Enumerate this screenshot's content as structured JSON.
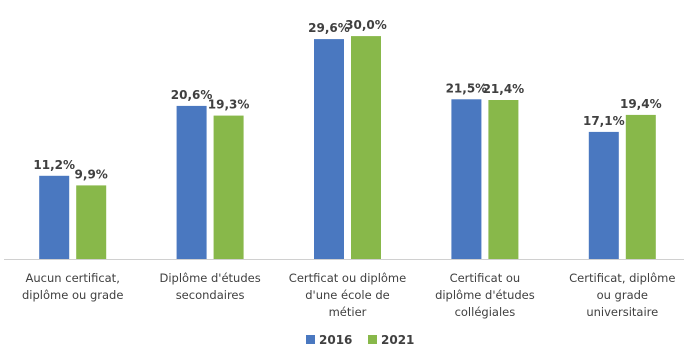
{
  "chart_data": {
    "type": "bar",
    "title": "",
    "xlabel": "",
    "ylabel": "",
    "ylim": [
      0,
      30
    ],
    "grid": false,
    "legend_position": "bottom",
    "categories": [
      [
        "Aucun certificat,",
        "diplôme ou grade"
      ],
      [
        "Diplôme d'études",
        "secondaires"
      ],
      [
        "Certficat ou diplôme",
        "d'une école de",
        "métier"
      ],
      [
        "Certificat ou",
        "diplôme d'études",
        "collégiales"
      ],
      [
        "Certificat, diplôme",
        "ou grade",
        "universitaire"
      ]
    ],
    "series": [
      {
        "name": "2016",
        "color": "#4a78c0",
        "values": [
          11.2,
          20.6,
          29.6,
          21.5,
          17.1
        ],
        "labels": [
          "11,2%",
          "20,6%",
          "29,6%",
          "21,5%",
          "17,1%"
        ]
      },
      {
        "name": "2021",
        "color": "#88b84a",
        "values": [
          9.9,
          19.3,
          30.0,
          21.4,
          19.4
        ],
        "labels": [
          "9,9%",
          "19,3%",
          "30,0%",
          "21,4%",
          "19,4%"
        ]
      }
    ]
  }
}
